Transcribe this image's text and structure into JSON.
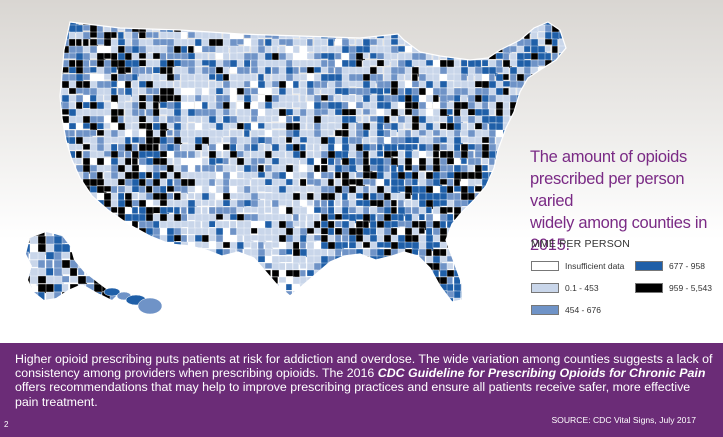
{
  "headline": {
    "line1": "The amount of opioids",
    "line2": "prescribed per person varied",
    "line3": "widely among counties in 2015."
  },
  "legend": {
    "title": "MME PER PERSON",
    "items": [
      {
        "label": "Insufficient data",
        "color": "#ffffff"
      },
      {
        "label": "0.1 - 453",
        "color": "#c9d6ea"
      },
      {
        "label": "454 - 676",
        "color": "#6f93c7"
      },
      {
        "label": "677 - 958",
        "color": "#1f5fa8"
      },
      {
        "label": "959 - 5,543",
        "color": "#000000"
      }
    ]
  },
  "footer": {
    "text_part1": "Higher opioid prescribing puts patients at risk for addiction and overdose. The wide variation among counties suggests a lack of consistency among providers when prescribing opioids. The 2016 ",
    "text_bold": "CDC Guideline for Prescribing Opioids for Chronic Pain",
    "text_part2": " offers recommendations that may help to improve prescribing practices and ensure all patients receive safer, more effective pain treatment.",
    "source": "SOURCE: CDC Vital Signs, July 2017",
    "page_number": "2"
  },
  "map_colors": {
    "white": "#ffffff",
    "light": "#c9d6ea",
    "medium": "#6f93c7",
    "dark": "#1f5fa8",
    "black": "#000000",
    "border": "#ffffff"
  }
}
